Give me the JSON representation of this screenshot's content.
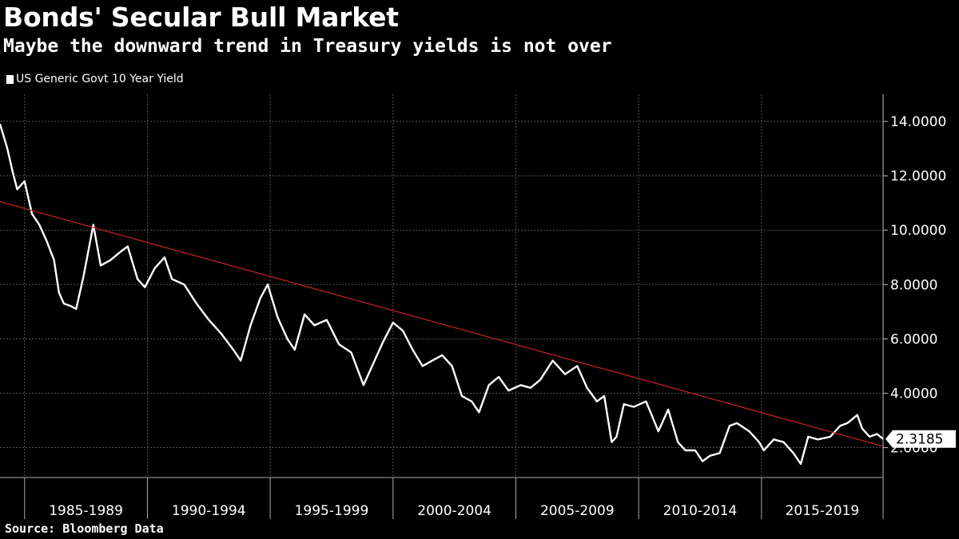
{
  "chart_data": {
    "type": "line",
    "title": "Bonds' Secular Bull Market",
    "subtitle": "Maybe the downward trend in Treasury yields is not over",
    "source": "Source: Bloomberg Data",
    "legend": [
      {
        "name": "US Generic Govt 10 Year Yield",
        "color": "#ffffff",
        "placement": "top-left"
      }
    ],
    "categories": [
      "1985-1989",
      "1990-1994",
      "1995-1999",
      "2000-2004",
      "2005-2009",
      "2010-2014",
      "2015-2019"
    ],
    "x_range": [
      1984.0,
      2019.95
    ],
    "ylim": [
      0.9,
      15.0
    ],
    "yticks": [
      2,
      4,
      6,
      8,
      10,
      12,
      14
    ],
    "ytick_labels": [
      "2.0000",
      "4.0000",
      "6.0000",
      "8.0000",
      "10.0000",
      "12.0000",
      "14.0000"
    ],
    "grid": true,
    "last_value_label": "2.3185",
    "series": [
      {
        "name": "US Generic Govt 10 Year Yield",
        "color": "#ffffff",
        "x": [
          1984.0,
          1984.3,
          1984.5,
          1984.7,
          1985.0,
          1985.3,
          1985.6,
          1985.9,
          1986.2,
          1986.4,
          1986.6,
          1986.9,
          1987.1,
          1987.4,
          1987.8,
          1988.1,
          1988.5,
          1988.9,
          1989.2,
          1989.6,
          1989.9,
          1990.3,
          1990.7,
          1991.0,
          1991.5,
          1992.0,
          1992.5,
          1993.0,
          1993.5,
          1993.8,
          1994.2,
          1994.6,
          1994.9,
          1995.3,
          1995.7,
          1996.0,
          1996.4,
          1996.8,
          1997.3,
          1997.8,
          1998.3,
          1998.8,
          1999.2,
          1999.6,
          2000.0,
          2000.4,
          2000.8,
          2001.2,
          2001.6,
          2002.0,
          2002.4,
          2002.8,
          2003.2,
          2003.5,
          2003.9,
          2004.3,
          2004.7,
          2005.2,
          2005.6,
          2006.0,
          2006.5,
          2007.0,
          2007.5,
          2007.9,
          2008.3,
          2008.6,
          2008.9,
          2009.1,
          2009.4,
          2009.8,
          2010.3,
          2010.8,
          2011.2,
          2011.6,
          2011.9,
          2012.3,
          2012.6,
          2012.9,
          2013.3,
          2013.7,
          2014.0,
          2014.5,
          2014.9,
          2015.1,
          2015.5,
          2015.9,
          2016.3,
          2016.6,
          2016.9,
          2017.3,
          2017.8,
          2018.2,
          2018.5,
          2018.9,
          2019.1,
          2019.4,
          2019.7,
          2019.95
        ],
        "values": [
          13.9,
          13.0,
          12.2,
          11.5,
          11.8,
          10.6,
          10.2,
          9.6,
          8.9,
          7.7,
          7.3,
          7.2,
          7.1,
          8.3,
          10.2,
          8.7,
          8.9,
          9.2,
          9.4,
          8.2,
          7.9,
          8.6,
          9.0,
          8.2,
          8.0,
          7.3,
          6.7,
          6.2,
          5.6,
          5.2,
          6.5,
          7.5,
          8.0,
          6.8,
          6.0,
          5.6,
          6.9,
          6.5,
          6.7,
          5.8,
          5.5,
          4.3,
          5.1,
          5.9,
          6.6,
          6.3,
          5.6,
          5.0,
          5.2,
          5.4,
          5.0,
          3.9,
          3.7,
          3.3,
          4.3,
          4.6,
          4.1,
          4.3,
          4.2,
          4.5,
          5.2,
          4.7,
          5.0,
          4.2,
          3.7,
          3.9,
          2.2,
          2.4,
          3.6,
          3.5,
          3.7,
          2.6,
          3.4,
          2.2,
          1.9,
          1.9,
          1.5,
          1.7,
          1.8,
          2.8,
          2.9,
          2.6,
          2.2,
          1.9,
          2.3,
          2.2,
          1.8,
          1.4,
          2.4,
          2.3,
          2.4,
          2.8,
          2.9,
          3.2,
          2.7,
          2.4,
          2.5,
          2.3185
        ]
      },
      {
        "name": "Trend line",
        "color": "#c8251f",
        "x": [
          1984.0,
          2019.95
        ],
        "values": [
          11.05,
          2.05
        ]
      }
    ]
  }
}
